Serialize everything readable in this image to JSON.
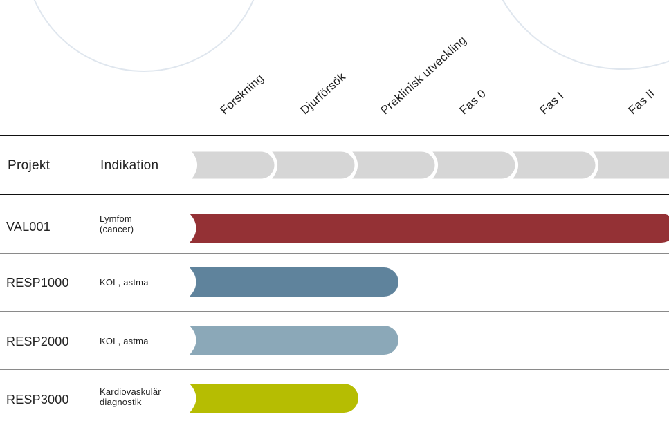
{
  "chart_data": {
    "type": "bar",
    "orientation": "horizontal",
    "phases": [
      "Forskning",
      "Djurförsök",
      "Preklinisk utveckling",
      "Fas 0",
      "Fas I",
      "Fas II"
    ],
    "header": {
      "project_label": "Projekt",
      "indication_label": "Indikation"
    },
    "projects": [
      {
        "code": "VAL001",
        "indication": "Lymfom\n(cancer)",
        "progress_phases": 6.0,
        "color": "#943135"
      },
      {
        "code": "RESP1000",
        "indication": "KOL, astma",
        "progress_phases": 2.5,
        "color": "#5f839c"
      },
      {
        "code": "RESP2000",
        "indication": "KOL, astma",
        "progress_phases": 2.5,
        "color": "#8ba8b8"
      },
      {
        "code": "RESP3000",
        "indication": "Kardiovaskulär\ndiagnostik",
        "progress_phases": 2.0,
        "color": "#b6bd02"
      }
    ],
    "colors": {
      "phase_track": "#d6d6d6",
      "decor_circle": "#dfe6ee"
    }
  }
}
